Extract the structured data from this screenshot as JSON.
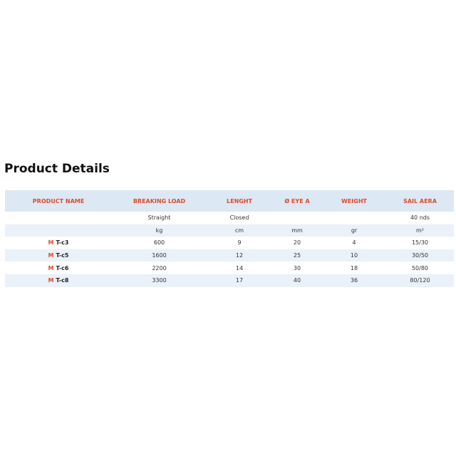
{
  "header": {
    "title": "Product Details"
  },
  "table": {
    "columns": [
      "PRODUCT NAME",
      "BREAKING LOAD",
      "LENGHT",
      "Ø EYE A",
      "WEIGHT",
      "SAIL AERA"
    ],
    "subrows": [
      [
        null,
        "Straight",
        "Closed",
        null,
        null,
        "40 nds"
      ],
      [
        null,
        "kg",
        "cm",
        "mm",
        "gr",
        "m²"
      ]
    ],
    "rows": [
      {
        "brand": "M",
        "model": "T-c3",
        "cells": [
          "600",
          "9",
          "20",
          "4",
          "15/30"
        ]
      },
      {
        "brand": "M",
        "model": "T-c5",
        "cells": [
          "1600",
          "12",
          "25",
          "10",
          "30/50"
        ]
      },
      {
        "brand": "M",
        "model": "T-c6",
        "cells": [
          "2200",
          "14",
          "30",
          "18",
          "50/80"
        ]
      },
      {
        "brand": "M",
        "model": "T-c8",
        "cells": [
          "3300",
          "17",
          "40",
          "36",
          "80/120"
        ]
      }
    ]
  }
}
